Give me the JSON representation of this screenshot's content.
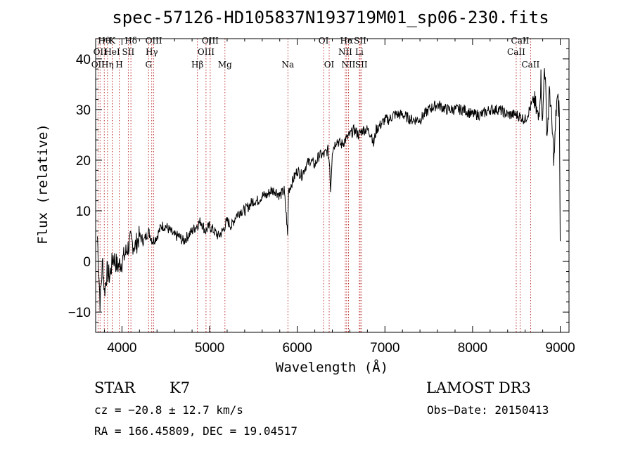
{
  "chart_data": {
    "type": "line",
    "title": "spec-57126-HD105837N193719M01_sp06-230.fits",
    "xlabel": "Wavelength (Å)",
    "ylabel": "Flux (relative)",
    "xlim": [
      3700,
      9100
    ],
    "ylim": [
      -14,
      44
    ],
    "x_ticks": [
      4000,
      5000,
      6000,
      7000,
      8000,
      9000
    ],
    "y_ticks": [
      -10,
      0,
      10,
      20,
      30,
      40
    ],
    "series": [
      {
        "name": "spectrum",
        "x": [
          3720,
          3750,
          3780,
          3800,
          3830,
          3860,
          3900,
          3950,
          4000,
          4050,
          4100,
          4150,
          4200,
          4250,
          4300,
          4350,
          4400,
          4450,
          4500,
          4550,
          4600,
          4650,
          4700,
          4750,
          4800,
          4850,
          4900,
          4950,
          5000,
          5050,
          5100,
          5150,
          5200,
          5250,
          5300,
          5350,
          5400,
          5450,
          5500,
          5550,
          5600,
          5650,
          5700,
          5750,
          5800,
          5850,
          5880,
          5890,
          5900,
          5950,
          6000,
          6050,
          6100,
          6150,
          6200,
          6250,
          6300,
          6350,
          6370,
          6380,
          6400,
          6450,
          6500,
          6550,
          6600,
          6650,
          6700,
          6750,
          6800,
          6850,
          6870,
          6900,
          6950,
          7000,
          7050,
          7100,
          7150,
          7200,
          7300,
          7400,
          7500,
          7600,
          7700,
          7800,
          7900,
          8000,
          8100,
          8200,
          8300,
          8400,
          8500,
          8600,
          8650,
          8700,
          8750,
          8780,
          8800,
          8820,
          8850,
          8880,
          8900,
          8930,
          8960,
          8990,
          9000
        ],
        "y": [
          5,
          -8,
          0,
          -6,
          -2,
          -3,
          1,
          -1,
          0,
          2,
          4,
          3,
          5,
          4,
          6,
          4,
          5,
          7,
          7,
          6,
          5,
          5,
          4,
          5,
          6,
          7,
          8,
          6,
          7,
          6,
          5,
          6,
          8,
          7,
          9,
          10,
          10,
          11,
          12,
          12,
          13,
          13,
          14,
          14,
          13,
          14,
          8,
          5,
          14,
          16,
          18,
          17,
          19,
          20,
          19,
          21,
          21,
          22,
          19,
          14,
          22,
          24,
          23,
          24,
          25,
          26,
          25,
          26,
          26,
          25,
          23,
          26,
          27,
          28,
          28,
          29,
          29,
          29,
          28,
          28,
          30,
          31,
          30,
          30,
          30,
          29,
          29,
          30,
          30,
          29,
          29,
          28,
          30,
          32,
          28,
          36,
          27,
          40,
          25,
          34,
          28,
          20,
          32,
          30,
          4
        ]
      }
    ],
    "lines_top_row1": [
      {
        "wave": 3798,
        "label": "Hθ"
      },
      {
        "wave": 3889,
        "label": "K"
      },
      {
        "wave": 4102,
        "label": "Hδ"
      },
      {
        "wave": 4363,
        "label": "OIII"
      },
      {
        "wave": 5007,
        "label": "OIII"
      },
      {
        "wave": 6300,
        "label": "OI"
      },
      {
        "wave": 6563,
        "label": "Hα"
      },
      {
        "wave": 6717,
        "label": "SII"
      },
      {
        "wave": 8542,
        "label": "CaII"
      }
    ],
    "lines_top_row2": [
      {
        "wave": 3750,
        "label": "OII"
      },
      {
        "wave": 3889,
        "label": "HeI"
      },
      {
        "wave": 4072,
        "label": "SII"
      },
      {
        "wave": 4340,
        "label": "Hγ"
      },
      {
        "wave": 4959,
        "label": "OIII"
      },
      {
        "wave": 6548,
        "label": "NII"
      },
      {
        "wave": 6708,
        "label": "Li"
      },
      {
        "wave": 8498,
        "label": "CaII"
      }
    ],
    "lines_top_row3": [
      {
        "wave": 3727,
        "label": "OII"
      },
      {
        "wave": 3835,
        "label": "Hη"
      },
      {
        "wave": 3970,
        "label": "H"
      },
      {
        "wave": 4304,
        "label": "G"
      },
      {
        "wave": 4861,
        "label": "Hβ"
      },
      {
        "wave": 5175,
        "label": "Mg"
      },
      {
        "wave": 5893,
        "label": "Na"
      },
      {
        "wave": 6364,
        "label": "OI"
      },
      {
        "wave": 6584,
        "label": "NII"
      },
      {
        "wave": 6731,
        "label": "SII"
      },
      {
        "wave": 8662,
        "label": "CaII"
      }
    ]
  },
  "info": {
    "object_class": "STAR",
    "subclass": "K7",
    "survey": "LAMOST DR3",
    "cz": "cz = −20.8 ± 12.7 km/s",
    "obs_date": "Obs−Date: 20150413",
    "coords": "RA = 166.45809, DEC =  19.04517"
  }
}
